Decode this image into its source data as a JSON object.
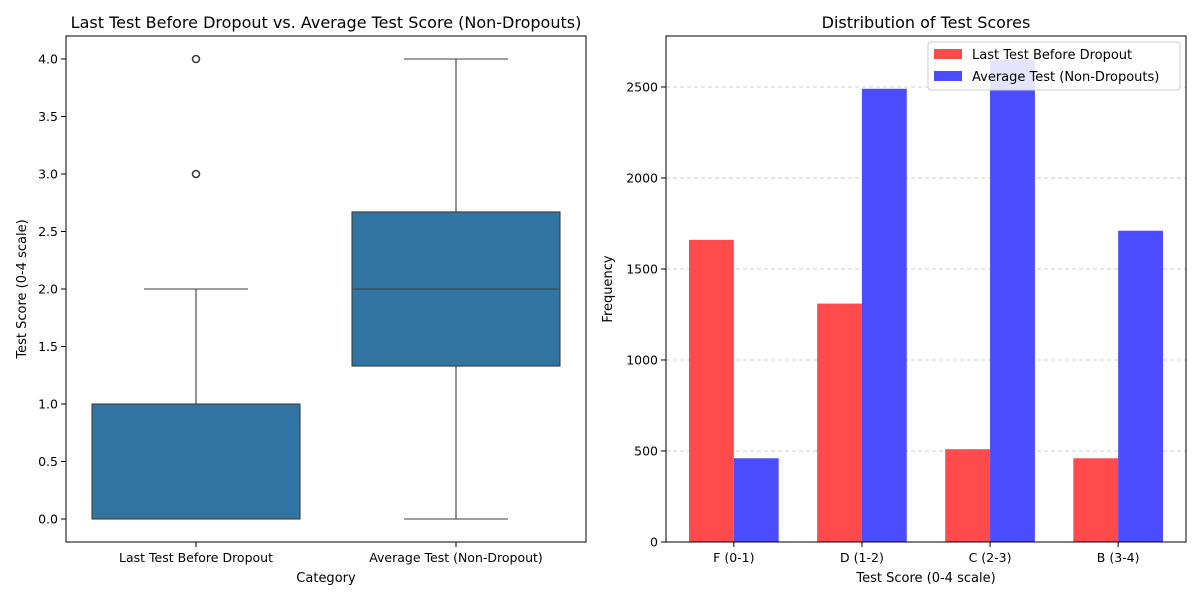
{
  "chart_data": [
    {
      "type": "box",
      "title": "Last Test Before Dropout vs. Average Test Score (Non-Dropouts)",
      "xlabel": "Category",
      "ylabel": "Test Score (0-4 scale)",
      "ylim": [
        -0.2,
        4.2
      ],
      "yticks": [
        "0.0",
        "0.5",
        "1.0",
        "1.5",
        "2.0",
        "2.5",
        "3.0",
        "3.5",
        "4.0"
      ],
      "grid": false,
      "color": "#3274a1",
      "categories": [
        "Last Test Before Dropout",
        "Average Test (Non-Dropout)"
      ],
      "boxes": [
        {
          "whisker_low": 0,
          "q1": 0,
          "median": 1,
          "q3": 1,
          "whisker_high": 2,
          "outliers": [
            3,
            4
          ]
        },
        {
          "whisker_low": 0,
          "q1": 1.33,
          "median": 2,
          "q3": 2.67,
          "whisker_high": 4,
          "outliers": []
        }
      ]
    },
    {
      "type": "bar",
      "title": "Distribution of Test Scores",
      "xlabel": "Test Score (0-4 scale)",
      "ylabel": "Frequency",
      "ylim": [
        0,
        2780
      ],
      "yticks": [
        "0",
        "500",
        "1000",
        "1500",
        "2000",
        "2500"
      ],
      "grid": "y-dashed",
      "legend_position": "top-right",
      "categories": [
        "F (0-1)",
        "D (1-2)",
        "C (2-3)",
        "B (3-4)"
      ],
      "series": [
        {
          "name": "Last Test Before Dropout",
          "color": "#ff4b4b",
          "values": [
            1660,
            1310,
            510,
            460
          ]
        },
        {
          "name": "Average Test (Non-Dropouts)",
          "color": "#4b4bff",
          "values": [
            460,
            2490,
            2650,
            1710
          ]
        }
      ]
    }
  ]
}
